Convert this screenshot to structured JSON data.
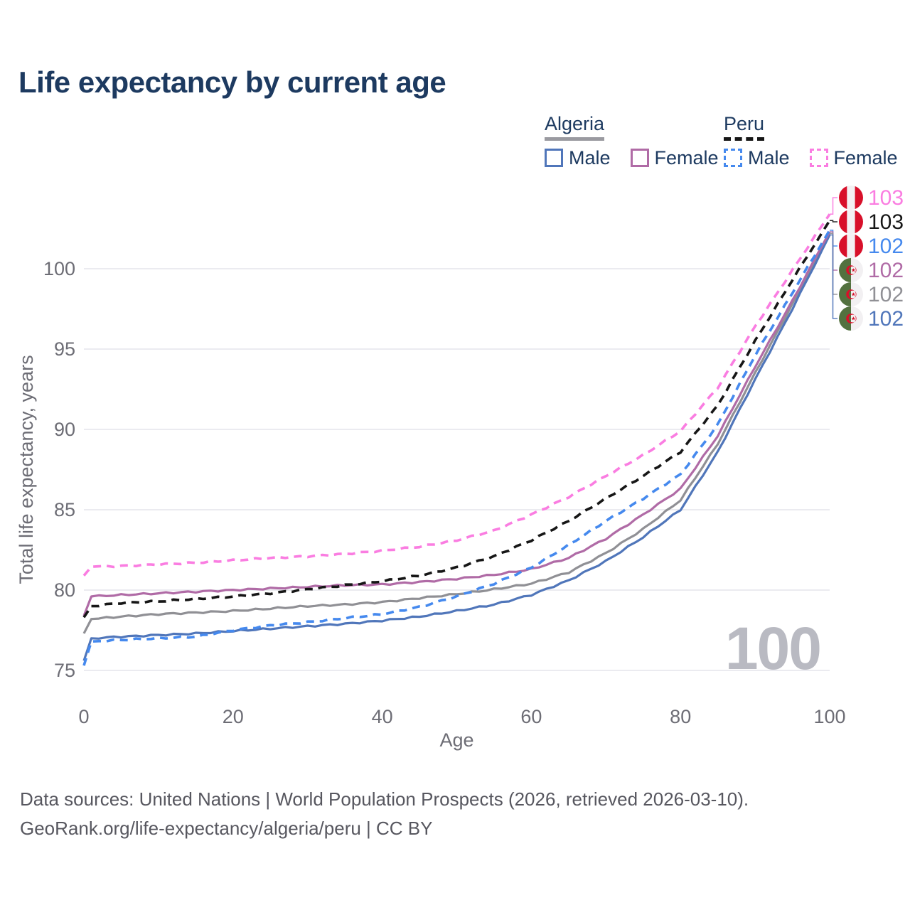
{
  "title": "Life expectancy by current age",
  "legend": {
    "groups": [
      {
        "country": "Algeria",
        "style": "solid",
        "items": [
          {
            "label": "Male"
          },
          {
            "label": "Female"
          }
        ]
      },
      {
        "country": "Peru",
        "style": "dashed",
        "items": [
          {
            "label": "Male"
          },
          {
            "label": "Female"
          }
        ]
      }
    ]
  },
  "footer": {
    "line1": "Data sources: United Nations | World Population Prospects (2026, retrieved 2026-03-10).",
    "line2": "GeoRank.org/life-expectancy/algeria/peru | CC BY"
  },
  "chart_data": {
    "type": "line",
    "title": "Life expectancy by current age",
    "xlabel": "Age",
    "ylabel": "Total life expectancy, years",
    "x_ticks": [
      0,
      20,
      40,
      60,
      80,
      100
    ],
    "y_ticks": [
      75,
      80,
      85,
      90,
      95,
      100
    ],
    "xlim": [
      0,
      100
    ],
    "ylim": [
      74.5,
      103.5
    ],
    "grid": "horizontal",
    "legend_position": "top-right",
    "age_cursor": "100",
    "ages": [
      0,
      1,
      5,
      10,
      15,
      20,
      25,
      30,
      35,
      40,
      45,
      50,
      55,
      60,
      65,
      70,
      75,
      80,
      85,
      90,
      95,
      100
    ],
    "series": [
      {
        "name": "Algeria Male",
        "country": "Algeria",
        "label": "Male",
        "color": "#5076ba",
        "dash": "solid",
        "end_value": "102",
        "values": [
          75.6,
          77.0,
          77.1,
          77.2,
          77.3,
          77.45,
          77.6,
          77.75,
          77.9,
          78.1,
          78.35,
          78.7,
          79.1,
          79.7,
          80.6,
          81.8,
          83.3,
          85.0,
          88.6,
          93.1,
          97.5,
          102.1
        ]
      },
      {
        "name": "Algeria",
        "country": "Algeria",
        "label": "Algeria",
        "color": "#909095",
        "dash": "solid",
        "end_value": "102",
        "values": [
          77.3,
          78.2,
          78.35,
          78.5,
          78.6,
          78.7,
          78.85,
          79.0,
          79.1,
          79.25,
          79.5,
          79.75,
          80.05,
          80.4,
          81.1,
          82.3,
          83.8,
          85.6,
          89.1,
          93.5,
          97.8,
          102.2
        ]
      },
      {
        "name": "Algeria Female",
        "country": "Algeria",
        "label": "Female",
        "color": "#b06ba6",
        "dash": "solid",
        "end_value": "102",
        "values": [
          78.4,
          79.6,
          79.7,
          79.8,
          79.9,
          80.0,
          80.1,
          80.2,
          80.3,
          80.35,
          80.5,
          80.7,
          80.95,
          81.3,
          82.0,
          83.2,
          84.7,
          86.3,
          89.6,
          93.9,
          98.0,
          102.3
        ]
      },
      {
        "name": "Peru Male",
        "country": "Peru",
        "label": "Male",
        "color": "#4589ee",
        "dash": "dashed",
        "end_value": "102",
        "values": [
          75.3,
          76.8,
          76.9,
          77.0,
          77.1,
          77.5,
          77.8,
          78.0,
          78.25,
          78.5,
          78.95,
          79.6,
          80.4,
          81.4,
          82.8,
          84.3,
          85.7,
          87.2,
          90.3,
          94.6,
          98.5,
          102.4
        ]
      },
      {
        "name": "Peru",
        "country": "Peru",
        "label": "Peru",
        "color": "#161616",
        "dash": "dashed",
        "end_value": "103",
        "values": [
          78.3,
          79.0,
          79.2,
          79.3,
          79.45,
          79.6,
          79.8,
          80.05,
          80.3,
          80.55,
          80.9,
          81.4,
          82.1,
          83.1,
          84.3,
          85.7,
          87.1,
          88.6,
          91.5,
          95.5,
          99.3,
          103.0
        ]
      },
      {
        "name": "Peru Female",
        "country": "Peru",
        "label": "Female",
        "color": "#fa7de1",
        "dash": "dashed",
        "end_value": "103",
        "values": [
          80.9,
          81.45,
          81.5,
          81.6,
          81.7,
          81.85,
          82.0,
          82.1,
          82.25,
          82.45,
          82.7,
          83.1,
          83.7,
          84.7,
          85.8,
          87.1,
          88.4,
          89.9,
          92.6,
          96.4,
          99.9,
          103.4
        ]
      }
    ],
    "end_labels": [
      {
        "flag": "peru",
        "value": "103",
        "series": 5
      },
      {
        "flag": "peru",
        "value": "103",
        "series": 4
      },
      {
        "flag": "peru",
        "value": "102",
        "series": 3
      },
      {
        "flag": "algeria",
        "value": "102",
        "series": 2
      },
      {
        "flag": "algeria",
        "value": "102",
        "series": 1
      },
      {
        "flag": "algeria",
        "value": "102",
        "series": 0
      }
    ]
  }
}
